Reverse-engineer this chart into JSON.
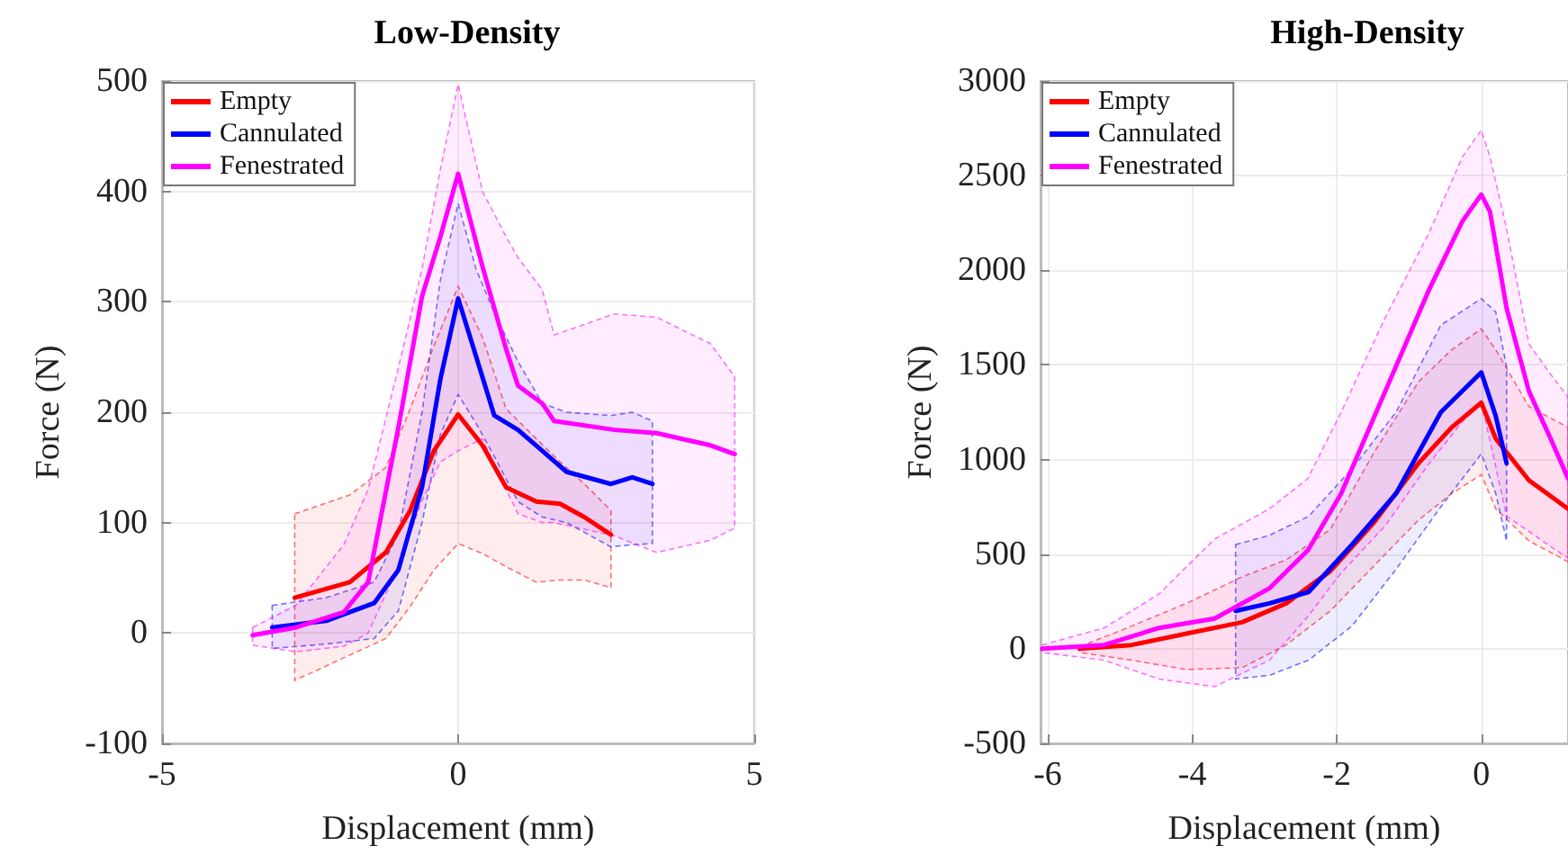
{
  "chart_data": [
    {
      "type": "line",
      "title": "Low-Density",
      "xlabel": "Displacement (mm)",
      "ylabel": "Force (N)",
      "xlim": [
        -5,
        5
      ],
      "xticks": [
        -5,
        0,
        5
      ],
      "ylim": [
        -100,
        500
      ],
      "yticks": [
        -100,
        0,
        100,
        200,
        300,
        400,
        500
      ],
      "grid": true,
      "legend": "top left",
      "marker": "none",
      "line_style": "solid",
      "series": [
        {
          "name": "Empty",
          "color": "#ff0000",
          "x": [
            -2.76,
            -1.83,
            -1.22,
            -0.81,
            -0.41,
            0,
            0.41,
            0.81,
            1.32,
            1.72,
            2.13,
            2.58
          ],
          "values": [
            32,
            46,
            73,
            111,
            165,
            198,
            170,
            132,
            119,
            117,
            105,
            89
          ],
          "upper": [
            108,
            125,
            150,
            203,
            260,
            314,
            268,
            203,
            176,
            155,
            135,
            111
          ],
          "lower": [
            -43,
            -20,
            -5,
            24,
            57,
            81,
            72,
            60,
            46,
            48,
            48,
            41
          ]
        },
        {
          "name": "Cannulated",
          "color": "#0000ff",
          "x": [
            -3.14,
            -2.23,
            -1.42,
            -1.01,
            -0.61,
            -0.3,
            0,
            0.3,
            0.61,
            1.01,
            1.42,
            1.83,
            2.58,
            2.94,
            3.28
          ],
          "values": [
            5,
            11,
            27,
            57,
            132,
            230,
            303,
            251,
            197,
            184,
            165,
            146,
            135,
            141,
            135
          ],
          "upper": [
            25,
            32,
            46,
            90,
            200,
            320,
            389,
            330,
            290,
            246,
            208,
            200,
            197,
            200,
            192
          ],
          "lower": [
            -14,
            -10,
            -5,
            20,
            100,
            180,
            216,
            190,
            160,
            119,
            105,
            100,
            78,
            80,
            81
          ]
        },
        {
          "name": "Fenestrated",
          "color": "#ff00ff",
          "x": [
            -3.47,
            -2.74,
            -1.93,
            -1.52,
            -1.01,
            -0.61,
            -0.3,
            0,
            0.41,
            0.81,
            1.01,
            1.42,
            1.62,
            2.64,
            3.35,
            4.26,
            4.67
          ],
          "values": [
            -2,
            5,
            19,
            46,
            186,
            305,
            359,
            416,
            332,
            257,
            224,
            208,
            192,
            184,
            181,
            170,
            162
          ],
          "upper": [
            5,
            25,
            80,
            130,
            240,
            330,
            420,
            497,
            400,
            359,
            340,
            311,
            270,
            289,
            286,
            262,
            232
          ],
          "lower": [
            -11,
            -17,
            -12,
            0,
            60,
            120,
            155,
            165,
            176,
            130,
            108,
            100,
            100,
            88,
            73,
            84,
            95
          ]
        }
      ]
    },
    {
      "type": "line",
      "title": "High-Density",
      "xlabel": "Displacement (mm)",
      "ylabel": "Force (N)",
      "xlim": [
        -6.1,
        1.2
      ],
      "xticks": [
        -6,
        -4,
        -2,
        0
      ],
      "ylim": [
        -500,
        3000
      ],
      "yticks": [
        -500,
        0,
        500,
        1000,
        1500,
        2000,
        2500,
        3000
      ],
      "grid": true,
      "legend": "top left",
      "marker": "none",
      "line_style": "solid",
      "series": [
        {
          "name": "Empty",
          "color": "#ff0000",
          "x": [
            -5.56,
            -4.84,
            -4.08,
            -3.31,
            -2.7,
            -2.09,
            -1.48,
            -0.87,
            -0.41,
            0,
            0.2,
            0.66,
            1.2
          ],
          "values": [
            0,
            20,
            80,
            140,
            240,
            410,
            670,
            980,
            1170,
            1300,
            1110,
            890,
            740
          ],
          "upper": [
            10,
            120,
            240,
            380,
            470,
            630,
            1040,
            1410,
            1580,
            1690,
            1580,
            1280,
            1170
          ],
          "lower": [
            -20,
            -60,
            -110,
            -100,
            20,
            200,
            440,
            680,
            820,
            920,
            740,
            570,
            460
          ]
        },
        {
          "name": "Cannulated",
          "color": "#0000ff",
          "x": [
            -3.4,
            -2.93,
            -2.39,
            -1.79,
            -1.18,
            -0.56,
            0,
            0.2,
            0.35
          ],
          "values": [
            200,
            240,
            300,
            550,
            820,
            1250,
            1460,
            1230,
            980
          ],
          "upper": [
            550,
            600,
            700,
            950,
            1250,
            1710,
            1850,
            1780,
            1490
          ],
          "lower": [
            -160,
            -140,
            -60,
            120,
            420,
            750,
            1030,
            820,
            570
          ]
        },
        {
          "name": "Fenestrated",
          "color": "#ff00ff",
          "x": [
            -6.08,
            -5.22,
            -4.46,
            -3.69,
            -2.93,
            -2.4,
            -1.94,
            -1.33,
            -0.72,
            -0.26,
            0,
            0.12,
            0.35,
            0.66,
            0.96,
            1.2
          ],
          "values": [
            0,
            20,
            110,
            160,
            320,
            520,
            820,
            1360,
            1900,
            2260,
            2400,
            2310,
            1800,
            1360,
            1110,
            900
          ],
          "upper": [
            20,
            110,
            290,
            580,
            740,
            900,
            1250,
            1750,
            2200,
            2600,
            2740,
            2600,
            2220,
            1610,
            1450,
            1330
          ],
          "lower": [
            -20,
            -60,
            -160,
            -200,
            -60,
            170,
            400,
            650,
            980,
            1200,
            1300,
            1100,
            700,
            620,
            540,
            480
          ]
        }
      ]
    }
  ]
}
